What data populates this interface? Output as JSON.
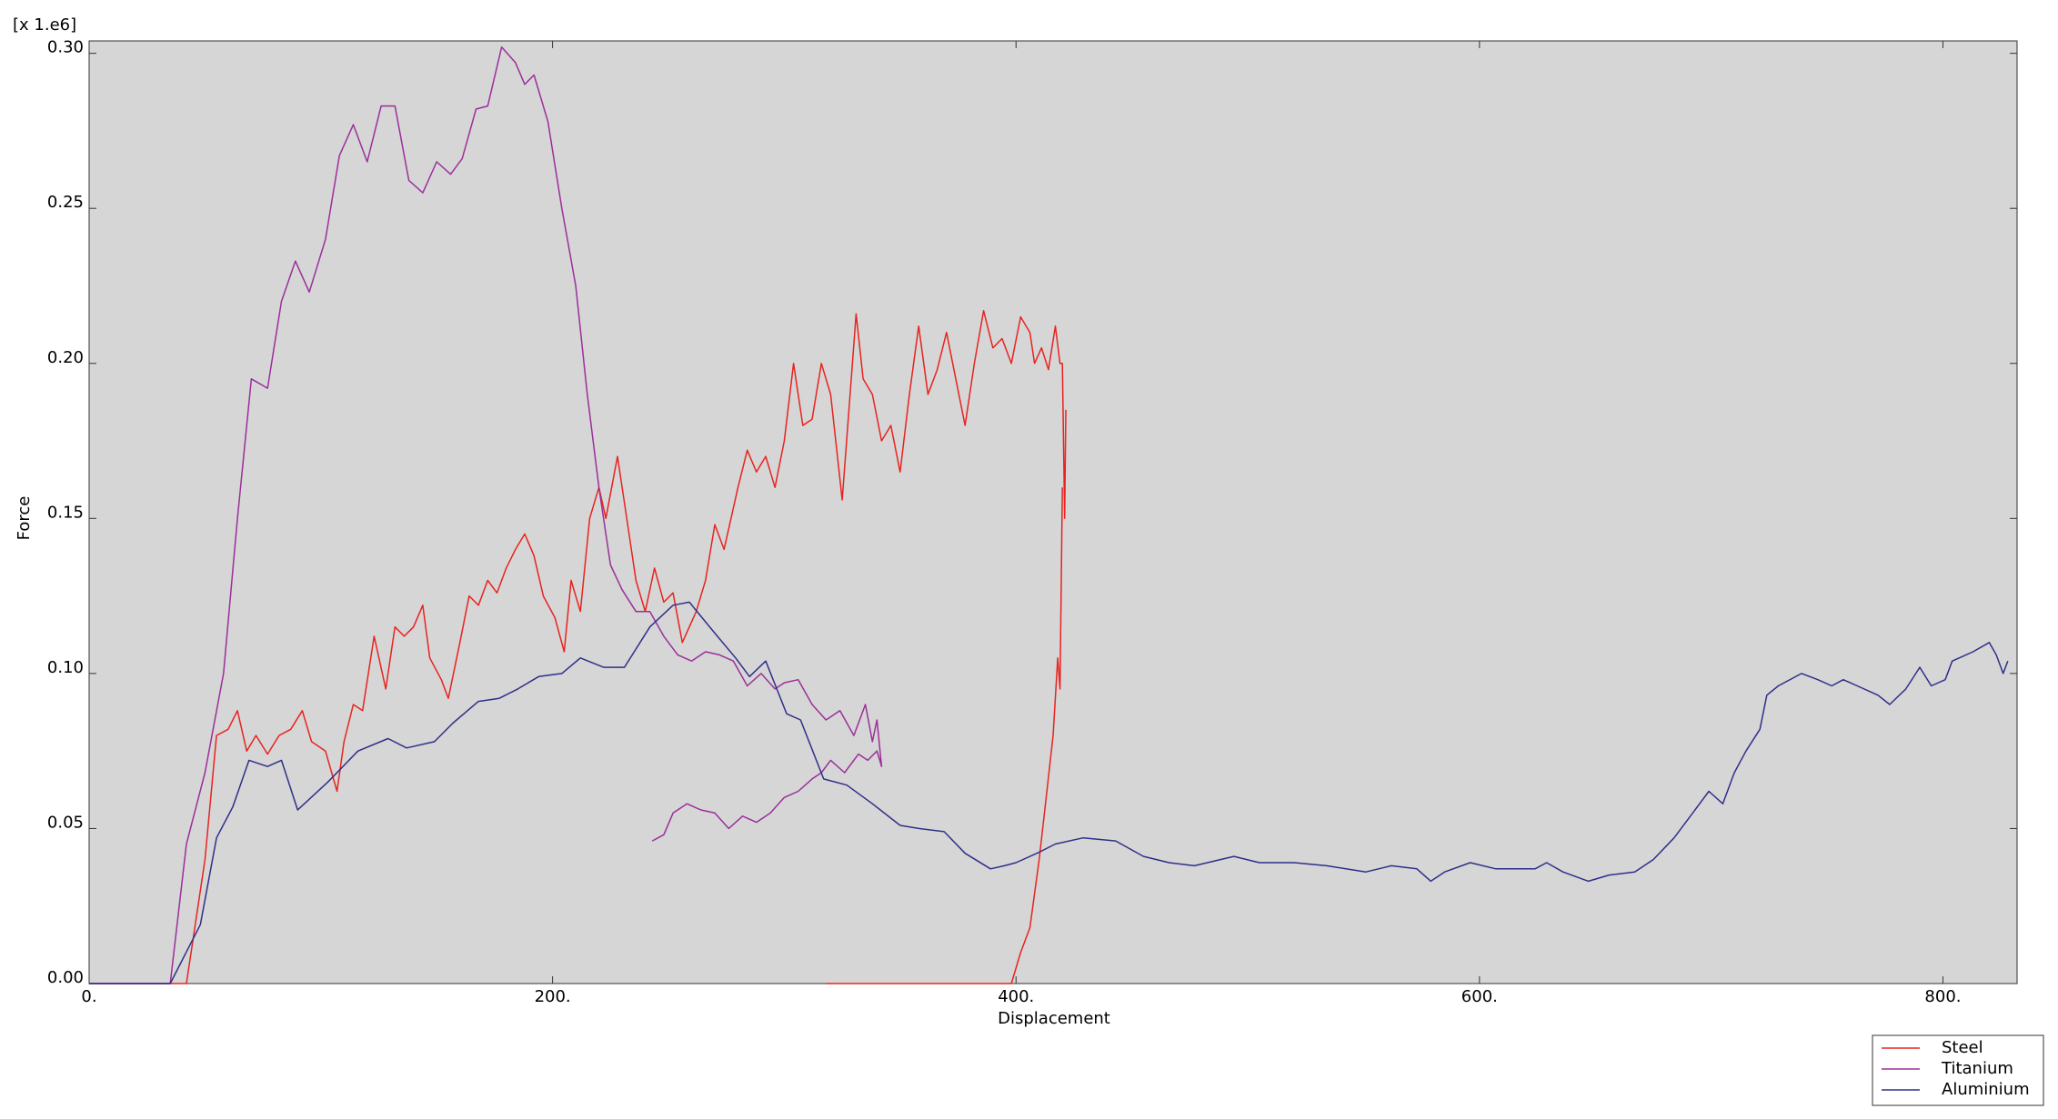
{
  "chart_data": {
    "type": "line",
    "y_multiplier": "[x 1.e6]",
    "xlabel": "Displacement",
    "ylabel": "Force",
    "xlim": [
      0,
      832
    ],
    "ylim": [
      0,
      0.304
    ],
    "xticks": [
      {
        "value": 0,
        "label": "0."
      },
      {
        "value": 200,
        "label": "200."
      },
      {
        "value": 400,
        "label": "400."
      },
      {
        "value": 600,
        "label": "600."
      },
      {
        "value": 800,
        "label": "800."
      }
    ],
    "yticks": [
      {
        "value": 0,
        "label": "0.00"
      },
      {
        "value": 0.05,
        "label": "0.05"
      },
      {
        "value": 0.1,
        "label": "0.10"
      },
      {
        "value": 0.15,
        "label": "0.15"
      },
      {
        "value": 0.2,
        "label": "0.20"
      },
      {
        "value": 0.25,
        "label": "0.25"
      },
      {
        "value": 0.3,
        "label": "0.30"
      }
    ],
    "legend": "lower right",
    "series": [
      {
        "name": "Steel",
        "color": "#e8231f",
        "x": [
          0,
          42,
          50,
          55,
          60,
          64,
          68,
          72,
          77,
          82,
          87,
          92,
          96,
          102,
          107,
          110,
          114,
          118,
          123,
          128,
          132,
          136,
          140,
          144,
          147,
          152,
          155,
          160,
          164,
          168,
          172,
          176,
          180,
          184,
          188,
          192,
          196,
          201,
          205,
          208,
          212,
          216,
          220,
          223,
          228,
          232,
          236,
          240,
          244,
          248,
          252,
          256,
          262,
          266,
          270,
          274,
          280,
          284,
          288,
          292,
          296,
          300,
          304,
          308,
          312,
          316,
          320,
          325,
          331,
          334,
          338,
          342,
          346,
          350,
          354,
          358,
          362,
          366,
          370,
          374,
          378,
          382,
          386,
          390,
          394,
          398,
          402,
          406,
          408,
          411,
          414,
          417,
          419,
          420,
          421,
          421.5,
          null,
          318,
          398,
          402,
          406,
          410,
          413,
          416,
          418,
          419,
          420
        ],
        "values": [
          0,
          0,
          0.04,
          0.08,
          0.082,
          0.088,
          0.075,
          0.08,
          0.074,
          0.08,
          0.082,
          0.088,
          0.078,
          0.075,
          0.062,
          0.078,
          0.09,
          0.088,
          0.112,
          0.095,
          0.115,
          0.112,
          0.115,
          0.122,
          0.105,
          0.098,
          0.092,
          0.11,
          0.125,
          0.122,
          0.13,
          0.126,
          0.134,
          0.14,
          0.145,
          0.138,
          0.125,
          0.118,
          0.107,
          0.13,
          0.12,
          0.15,
          0.16,
          0.15,
          0.17,
          0.15,
          0.13,
          0.12,
          0.134,
          0.123,
          0.126,
          0.11,
          0.12,
          0.13,
          0.148,
          0.14,
          0.16,
          0.172,
          0.165,
          0.17,
          0.16,
          0.175,
          0.2,
          0.18,
          0.182,
          0.2,
          0.19,
          0.156,
          0.216,
          0.195,
          0.19,
          0.175,
          0.18,
          0.165,
          0.19,
          0.212,
          0.19,
          0.198,
          0.21,
          0.195,
          0.18,
          0.2,
          0.217,
          0.205,
          0.208,
          0.2,
          0.215,
          0.21,
          0.2,
          0.205,
          0.198,
          0.212,
          0.2,
          0.2,
          0.15,
          0.185,
          null,
          0,
          0,
          0.01,
          0.018,
          0.04,
          0.06,
          0.08,
          0.105,
          0.095,
          0.16
        ]
      },
      {
        "name": "Titanium",
        "color": "#9b2f9b",
        "x": [
          0,
          35,
          42,
          50,
          58,
          64,
          70,
          77,
          83,
          89,
          95,
          102,
          108,
          114,
          120,
          126,
          132,
          138,
          144,
          150,
          156,
          161,
          167,
          172,
          178,
          184,
          188,
          192,
          198,
          204,
          210,
          215,
          220,
          225,
          230,
          236,
          242,
          248,
          254,
          260,
          266,
          272,
          278,
          284,
          290,
          296,
          300,
          306,
          312,
          318,
          324,
          330,
          335,
          338,
          340,
          342,
          340,
          336,
          332,
          326,
          320,
          316,
          312,
          306,
          300,
          294,
          288,
          282,
          276,
          270,
          264,
          258,
          252,
          248,
          243
        ],
        "values": [
          0,
          0,
          0.045,
          0.068,
          0.1,
          0.15,
          0.195,
          0.192,
          0.22,
          0.233,
          0.223,
          0.24,
          0.267,
          0.277,
          0.265,
          0.283,
          0.283,
          0.259,
          0.255,
          0.265,
          0.261,
          0.266,
          0.282,
          0.283,
          0.302,
          0.297,
          0.29,
          0.293,
          0.278,
          0.25,
          0.225,
          0.19,
          0.16,
          0.135,
          0.127,
          0.12,
          0.12,
          0.112,
          0.106,
          0.104,
          0.107,
          0.106,
          0.104,
          0.096,
          0.1,
          0.095,
          0.097,
          0.098,
          0.09,
          0.085,
          0.088,
          0.08,
          0.09,
          0.078,
          0.085,
          0.07,
          0.075,
          0.072,
          0.074,
          0.068,
          0.072,
          0.068,
          0.066,
          0.062,
          0.06,
          0.055,
          0.052,
          0.054,
          0.05,
          0.055,
          0.056,
          0.058,
          0.055,
          0.048,
          0.046
        ]
      },
      {
        "name": "Aluminium",
        "color": "#2f2f8a",
        "x": [
          0,
          35,
          48,
          55,
          62,
          69,
          77,
          83,
          90,
          103,
          116,
          129,
          137,
          149,
          157,
          168,
          177,
          185,
          194,
          204,
          212,
          222,
          231,
          242,
          252,
          259,
          270,
          279,
          285,
          292,
          301,
          307,
          317,
          327,
          338,
          350,
          358,
          369,
          378,
          389,
          395,
          400,
          409,
          417,
          429,
          443,
          455,
          466,
          477,
          494,
          505,
          520,
          534,
          551,
          562,
          573,
          579,
          585,
          596,
          607,
          624,
          629,
          636,
          647,
          656,
          667,
          675,
          684,
          692,
          699,
          705,
          710,
          715,
          721,
          724,
          729,
          739,
          746,
          752,
          757,
          763,
          772,
          777,
          784,
          790,
          795,
          801,
          804,
          813,
          820,
          823,
          826,
          828
        ],
        "values": [
          0,
          0,
          0.019,
          0.047,
          0.057,
          0.072,
          0.07,
          0.072,
          0.056,
          0.065,
          0.075,
          0.079,
          0.076,
          0.078,
          0.084,
          0.091,
          0.092,
          0.095,
          0.099,
          0.1,
          0.105,
          0.102,
          0.102,
          0.115,
          0.122,
          0.123,
          0.113,
          0.105,
          0.099,
          0.104,
          0.087,
          0.085,
          0.066,
          0.064,
          0.058,
          0.051,
          0.05,
          0.049,
          0.042,
          0.037,
          0.038,
          0.039,
          0.042,
          0.045,
          0.047,
          0.046,
          0.041,
          0.039,
          0.038,
          0.041,
          0.039,
          0.039,
          0.038,
          0.036,
          0.038,
          0.037,
          0.033,
          0.036,
          0.039,
          0.037,
          0.037,
          0.039,
          0.036,
          0.033,
          0.035,
          0.036,
          0.04,
          0.047,
          0.055,
          0.062,
          0.058,
          0.068,
          0.075,
          0.082,
          0.093,
          0.096,
          0.1,
          0.098,
          0.096,
          0.098,
          0.096,
          0.093,
          0.09,
          0.095,
          0.102,
          0.096,
          0.098,
          0.104,
          0.107,
          0.11,
          0.106,
          0.1,
          0.104
        ]
      }
    ]
  }
}
